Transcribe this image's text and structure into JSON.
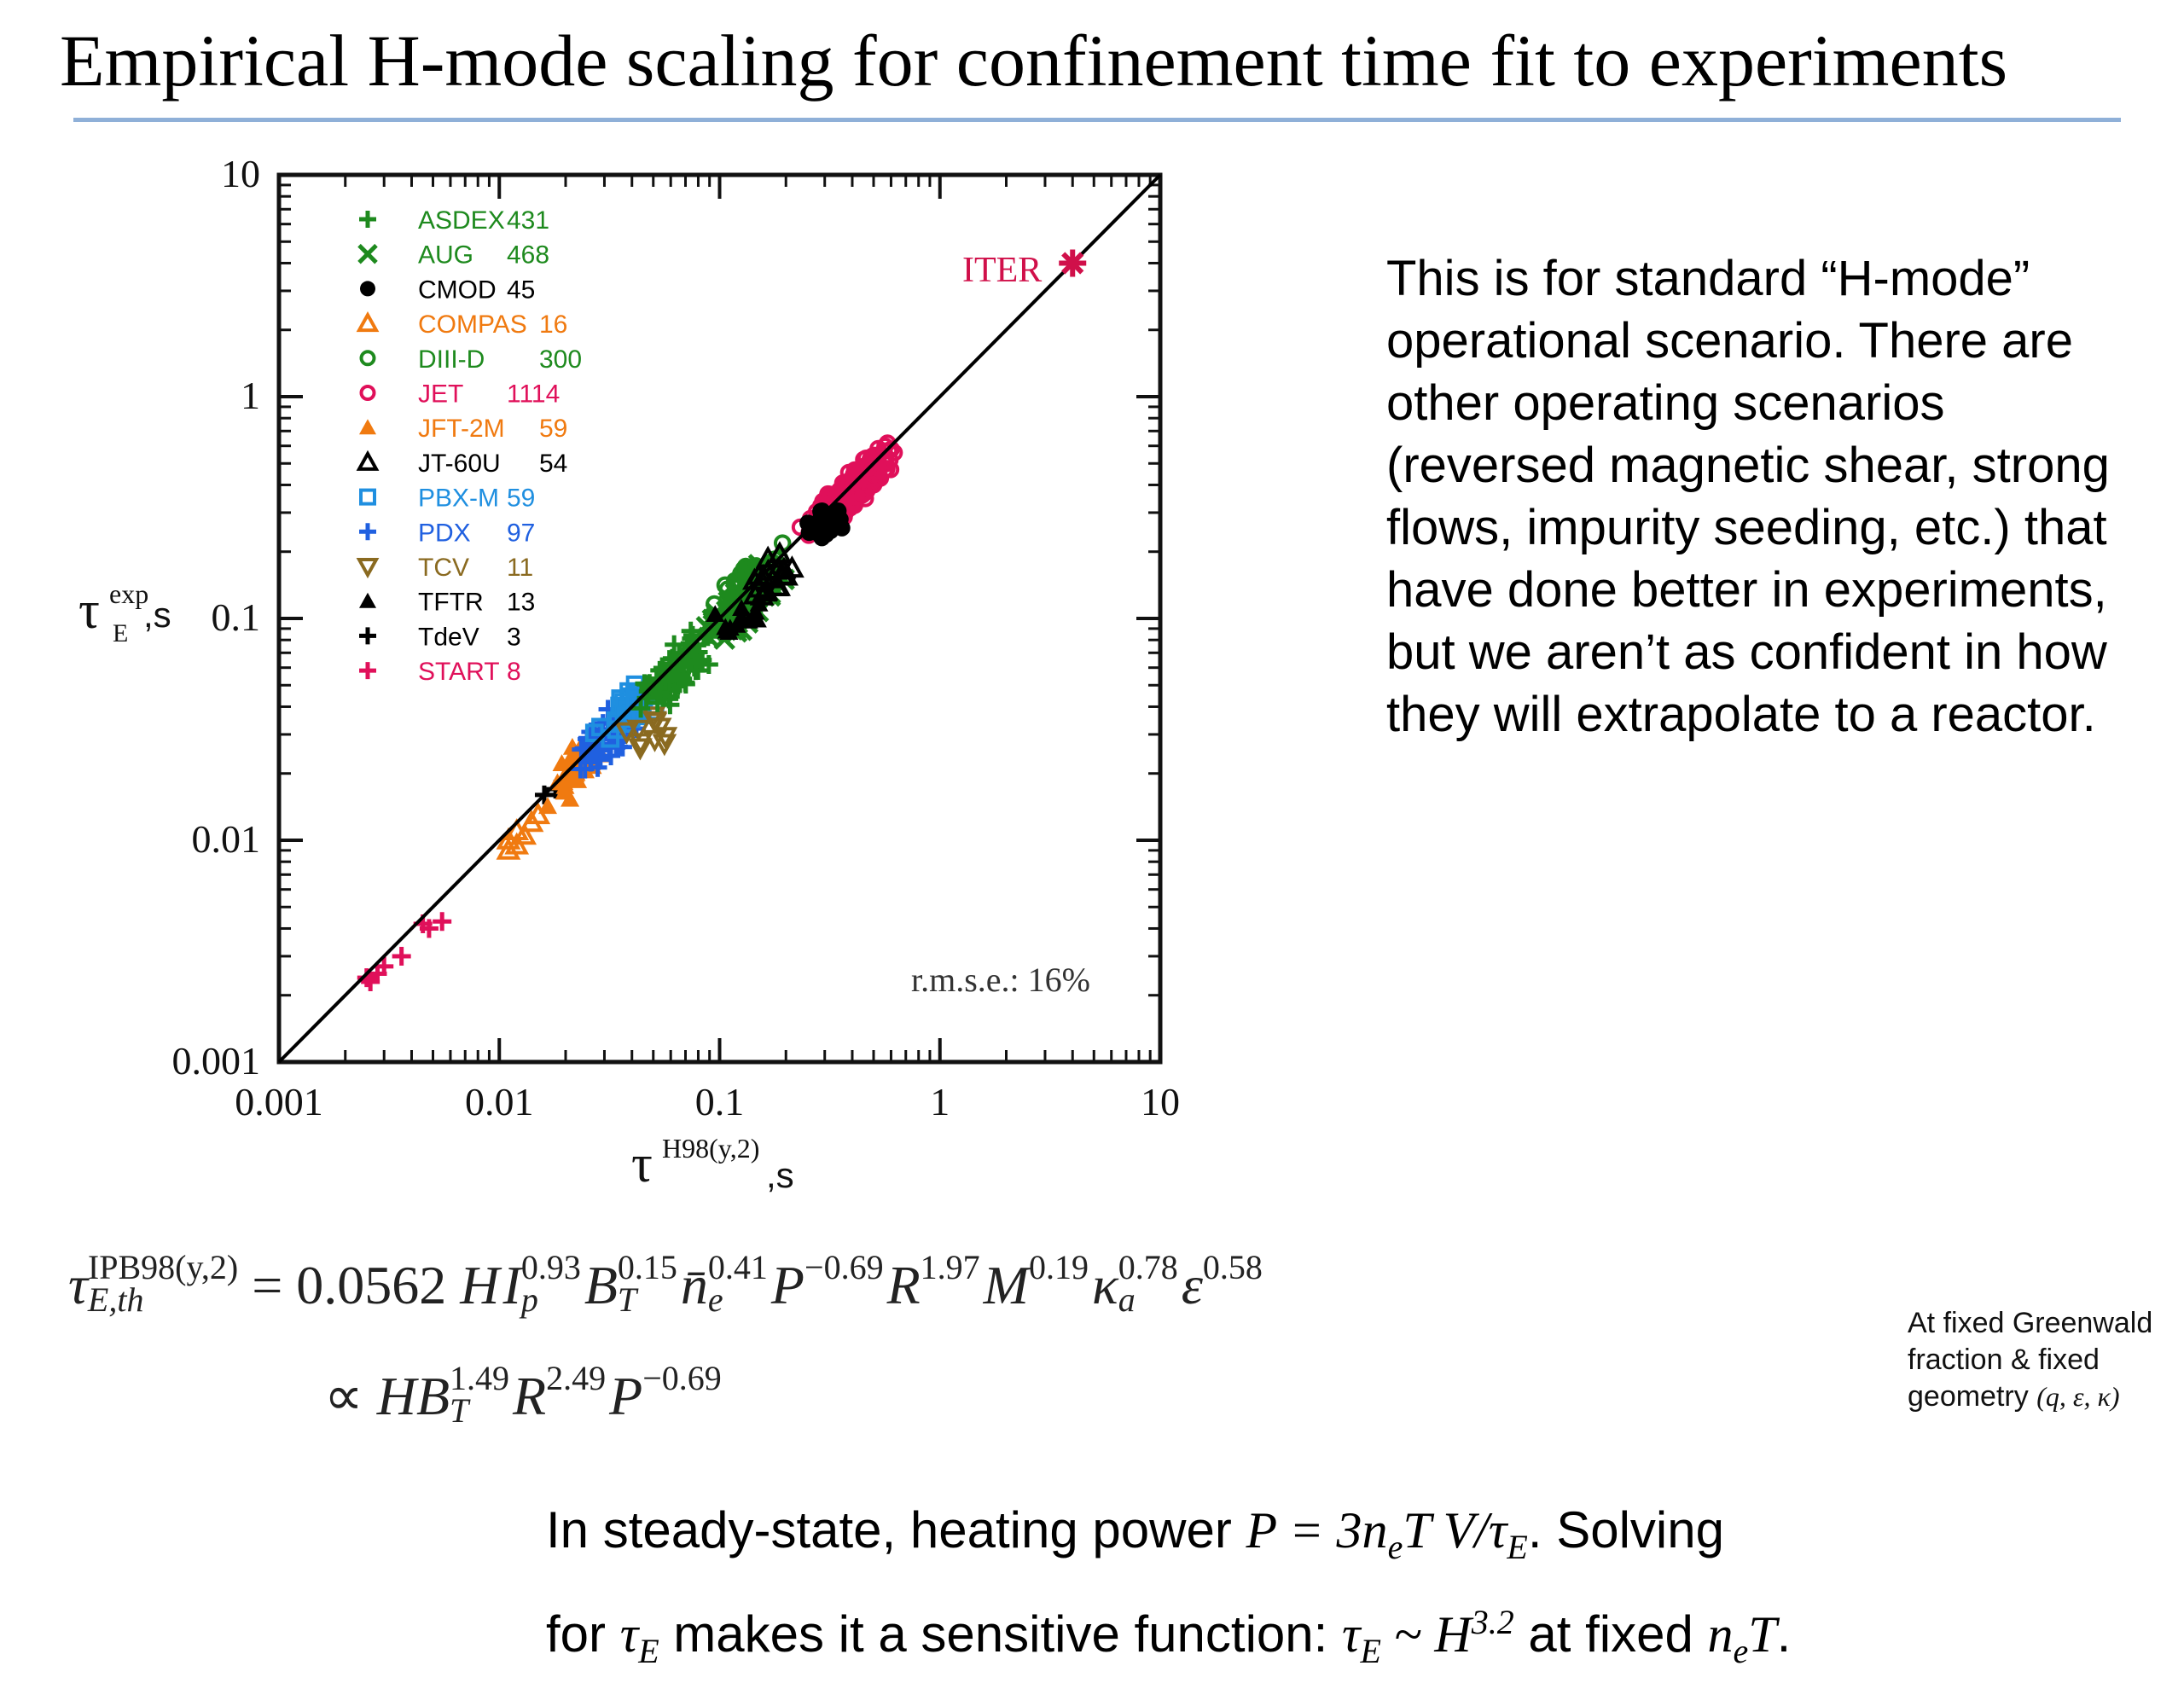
{
  "slide": {
    "title": "Empirical H-mode scaling for confinement time fit to experiments"
  },
  "chart_data": {
    "type": "scatter",
    "x_scale": "log",
    "y_scale": "log",
    "xlim": [
      0.001,
      10
    ],
    "ylim": [
      0.001,
      10
    ],
    "x_ticks": [
      "0.001",
      "0.01",
      "0.1",
      "1",
      "10"
    ],
    "y_ticks": [
      "0.001",
      "0.01",
      "0.1",
      "1",
      "10"
    ],
    "xlabel": {
      "main": "τ",
      "sup": "H98(y,2)",
      "tail": ",s"
    },
    "ylabel": {
      "main": "τ",
      "sup": "exp",
      "sub": "E",
      "tail": ",s"
    },
    "annotation_rmse": "r.m.s.e.: 16%",
    "iter_label": "ITER",
    "iter_point": [
      4.0,
      4.0
    ],
    "unity_line": [
      [
        0.001,
        0.001
      ],
      [
        10,
        10
      ]
    ],
    "legend_placement": "top-left",
    "legend": [
      {
        "name": "ASDEX",
        "count": "431",
        "color": "#1e8a1e",
        "marker": "+"
      },
      {
        "name": "AUG",
        "count": "468",
        "color": "#1e8a1e",
        "marker": "x"
      },
      {
        "name": "CMOD",
        "count": "45",
        "color": "#000000",
        "marker": "filled-circle"
      },
      {
        "name": "COMPAS",
        "count": "16",
        "color": "#f07a10",
        "marker": "open-triangle"
      },
      {
        "name": "DIII-D",
        "count": "300",
        "color": "#1e8a1e",
        "marker": "open-circle"
      },
      {
        "name": "JET",
        "count": "1114",
        "color": "#e0105a",
        "marker": "open-circle"
      },
      {
        "name": "JFT-2M",
        "count": "59",
        "color": "#f07a10",
        "marker": "filled-triangle"
      },
      {
        "name": "JT-60U",
        "count": "54",
        "color": "#000000",
        "marker": "open-triangle"
      },
      {
        "name": "PBX-M",
        "count": "59",
        "color": "#1f8fe0",
        "marker": "open-square"
      },
      {
        "name": "PDX",
        "count": "97",
        "color": "#2060e0",
        "marker": "+"
      },
      {
        "name": "TCV",
        "count": "11",
        "color": "#8a6a20",
        "marker": "open-down-triangle"
      },
      {
        "name": "TFTR",
        "count": "13",
        "color": "#000000",
        "marker": "filled-triangle"
      },
      {
        "name": "TdeV",
        "count": "3",
        "color": "#000000",
        "marker": "+"
      },
      {
        "name": "START",
        "count": "8",
        "color": "#e0105a",
        "marker": "+"
      }
    ],
    "clusters": [
      {
        "name": "START",
        "points": [
          [
            0.0026,
            0.0023
          ],
          [
            0.003,
            0.0027
          ],
          [
            0.0036,
            0.003
          ],
          [
            0.0045,
            0.0042
          ],
          [
            0.0055,
            0.0043
          ],
          [
            0.0028,
            0.0025
          ],
          [
            0.0048,
            0.004
          ],
          [
            0.0025,
            0.0024
          ]
        ]
      },
      {
        "name": "COMPAS",
        "points": [
          [
            0.011,
            0.009
          ],
          [
            0.012,
            0.011
          ],
          [
            0.013,
            0.0105
          ],
          [
            0.014,
            0.012
          ],
          [
            0.011,
            0.01
          ],
          [
            0.015,
            0.013
          ],
          [
            0.012,
            0.0095
          ]
        ]
      },
      {
        "name": "TdeV",
        "points": [
          [
            0.016,
            0.016
          ],
          [
            0.018,
            0.017
          ],
          [
            0.021,
            0.018
          ]
        ]
      },
      {
        "name": "JFT-2M",
        "center": [
          0.022,
          0.021
        ],
        "spread_dex": 0.11,
        "n": 40
      },
      {
        "name": "PDX",
        "center": [
          0.03,
          0.028
        ],
        "spread_dex": 0.12,
        "n": 50
      },
      {
        "name": "PBX-M",
        "center": [
          0.04,
          0.04
        ],
        "spread_dex": 0.11,
        "n": 40
      },
      {
        "name": "TCV",
        "center": [
          0.048,
          0.03
        ],
        "spread_dex": 0.08,
        "n": 11
      },
      {
        "name": "ASDEX",
        "center": [
          0.065,
          0.06
        ],
        "spread_dex": 0.14,
        "n": 90
      },
      {
        "name": "AUG",
        "center": [
          0.12,
          0.11
        ],
        "spread_dex": 0.14,
        "n": 110
      },
      {
        "name": "DIII-D",
        "center": [
          0.14,
          0.15
        ],
        "spread_dex": 0.12,
        "n": 60
      },
      {
        "name": "JT-60U",
        "center": [
          0.17,
          0.15
        ],
        "spread_dex": 0.1,
        "n": 20
      },
      {
        "name": "TFTR",
        "center": [
          0.12,
          0.1
        ],
        "spread_dex": 0.08,
        "n": 13
      },
      {
        "name": "JET",
        "center": [
          0.4,
          0.38
        ],
        "spread_dex": 0.16,
        "n": 220
      },
      {
        "name": "CMOD",
        "center": [
          0.3,
          0.26
        ],
        "spread_dex": 0.05,
        "n": 35
      }
    ]
  },
  "side_text": "This is for standard “H-mode” operational scenario.  There are other operating scenarios (reversed magnetic shear, strong flows, impurity seeding, etc.) that have done better in experiments, but we aren’t as confident in how they will extrapolate to a reactor.",
  "formula": {
    "lhs_symbol": "τ",
    "lhs_sup": "IPB98(y,2)",
    "lhs_sub": "E,th",
    "eq_coef": "= 0.0562",
    "terms": [
      {
        "sym": "H",
        "exp": ""
      },
      {
        "sym": "I",
        "sub": "p",
        "exp": "0.93"
      },
      {
        "sym": "B",
        "sub": "T",
        "exp": "0.15"
      },
      {
        "sym": "n̄",
        "sub": "e",
        "exp": "0.41"
      },
      {
        "sym": "P",
        "exp": "−0.69"
      },
      {
        "sym": "R",
        "exp": "1.97"
      },
      {
        "sym": "M",
        "exp": "0.19"
      },
      {
        "sym": "κ",
        "sub": "a",
        "exp": "0.78"
      },
      {
        "sym": "ε",
        "exp": "0.58"
      }
    ],
    "line2_prop": "∝",
    "line2_terms": [
      {
        "sym": "HB",
        "sub": "T",
        "exp": "1.49"
      },
      {
        "sym": "R",
        "exp": "2.49"
      },
      {
        "sym": "P",
        "exp": "−0.69"
      }
    ]
  },
  "greenwald_note": {
    "line1": "At fixed Greenwald",
    "line2": "fraction & fixed",
    "line3": "geometry",
    "vars": "(q, ε, κ)"
  },
  "bottom_text": {
    "l1_a": "In steady-state, heating power ",
    "l1_b": ".  Solving",
    "l2_a": "for ",
    "l2_b": " makes it a sensitive function: ",
    "l2_c": " at fixed ",
    "l2_d": "."
  }
}
